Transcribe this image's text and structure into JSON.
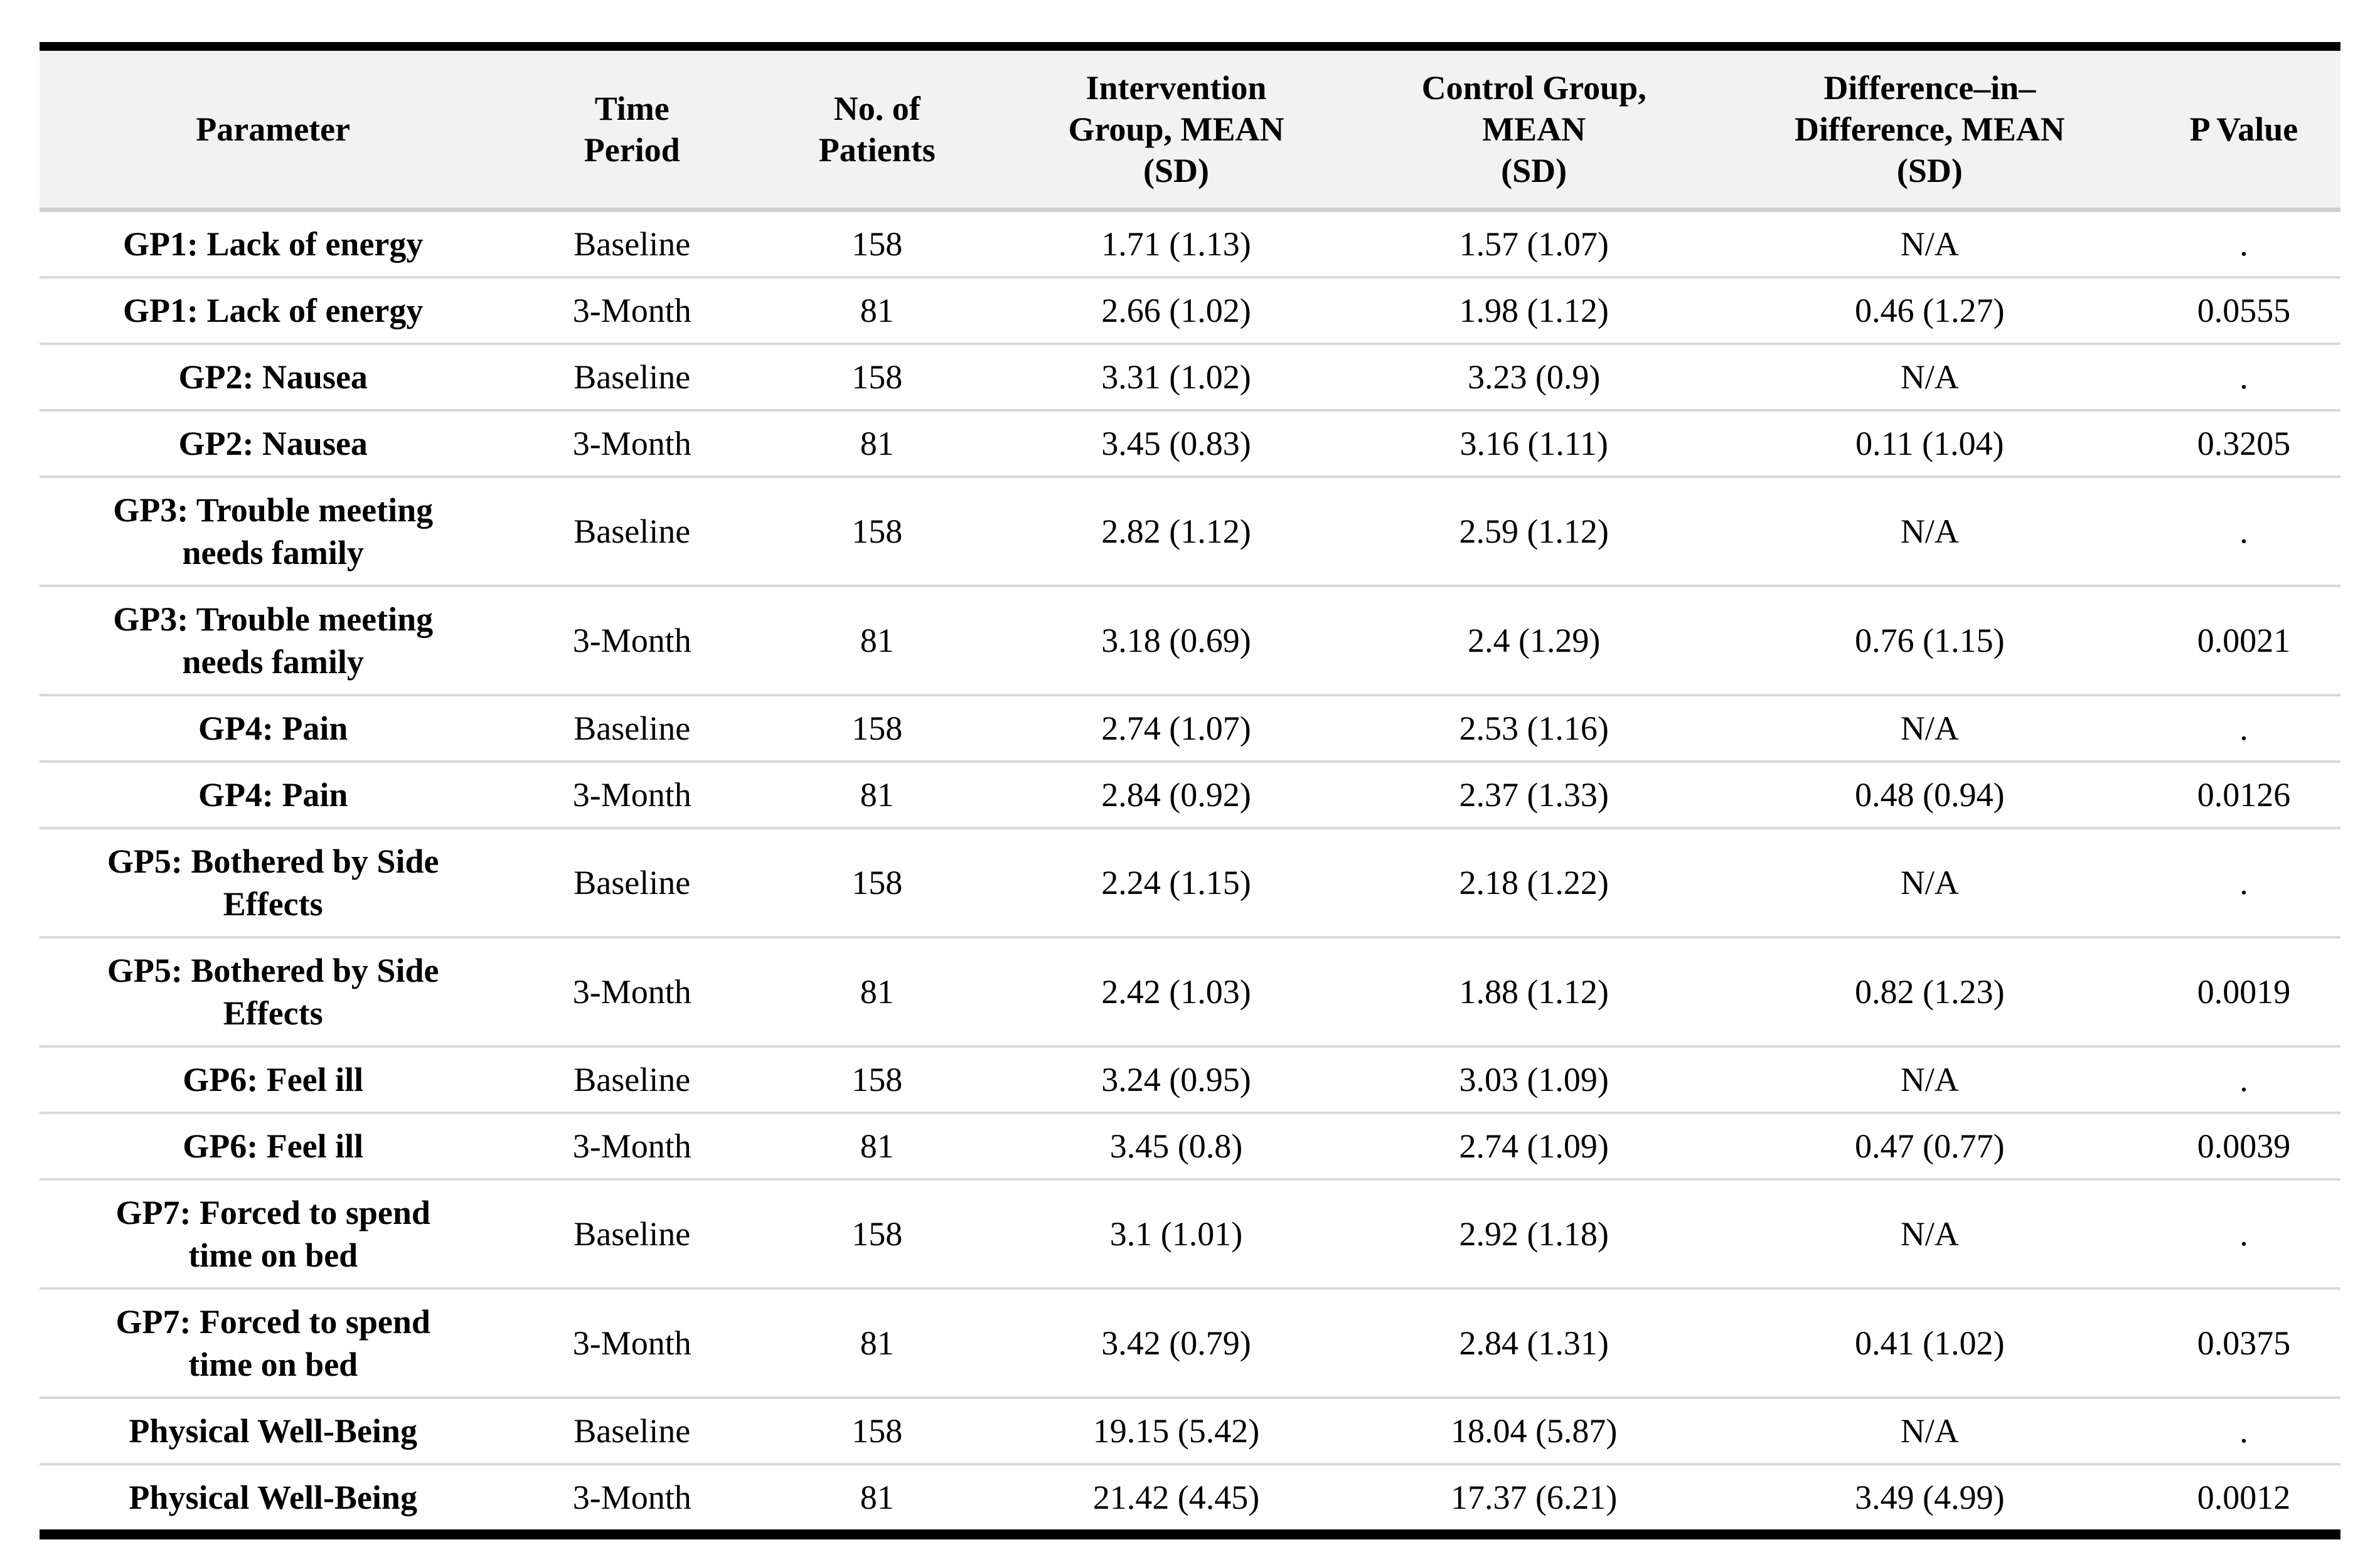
{
  "colors": {
    "page_bg": "#ffffff",
    "header_bg": "#f2f2f2",
    "row_divider": "#d9d9d9",
    "header_divider": "#cfcfcf",
    "outer_border": "#000000",
    "text": "#000000"
  },
  "table": {
    "column_ids": [
      "parameter",
      "time-period",
      "no-of-patients",
      "intervention-mean",
      "control-mean",
      "difference-mean",
      "p-value"
    ],
    "columns": [
      "Parameter",
      "Time\nPeriod",
      "No. of\nPatients",
      "Intervention\nGroup, MEAN\n(SD)",
      "Control Group,\nMEAN\n(SD)",
      "Difference–in–\nDifference, MEAN\n(SD)",
      "P Value"
    ],
    "rows": [
      [
        "GP1: Lack of energy",
        "Baseline",
        "158",
        "1.71 (1.13)",
        "1.57 (1.07)",
        "N/A",
        "."
      ],
      [
        "GP1: Lack of energy",
        "3-Month",
        "81",
        "2.66 (1.02)",
        "1.98 (1.12)",
        "0.46 (1.27)",
        "0.0555"
      ],
      [
        "GP2: Nausea",
        "Baseline",
        "158",
        "3.31 (1.02)",
        "3.23 (0.9)",
        "N/A",
        "."
      ],
      [
        "GP2: Nausea",
        "3-Month",
        "81",
        "3.45 (0.83)",
        "3.16 (1.11)",
        "0.11 (1.04)",
        "0.3205"
      ],
      [
        "GP3: Trouble meeting\nneeds family",
        "Baseline",
        "158",
        "2.82 (1.12)",
        "2.59 (1.12)",
        "N/A",
        "."
      ],
      [
        "GP3: Trouble meeting\nneeds family",
        "3-Month",
        "81",
        "3.18 (0.69)",
        "2.4 (1.29)",
        "0.76 (1.15)",
        "0.0021"
      ],
      [
        "GP4: Pain",
        "Baseline",
        "158",
        "2.74 (1.07)",
        "2.53 (1.16)",
        "N/A",
        "."
      ],
      [
        "GP4: Pain",
        "3-Month",
        "81",
        "2.84 (0.92)",
        "2.37 (1.33)",
        "0.48 (0.94)",
        "0.0126"
      ],
      [
        "GP5: Bothered by Side\nEffects",
        "Baseline",
        "158",
        "2.24 (1.15)",
        "2.18 (1.22)",
        "N/A",
        "."
      ],
      [
        "GP5: Bothered by Side\nEffects",
        "3-Month",
        "81",
        "2.42 (1.03)",
        "1.88 (1.12)",
        "0.82 (1.23)",
        "0.0019"
      ],
      [
        "GP6: Feel ill",
        "Baseline",
        "158",
        "3.24 (0.95)",
        "3.03 (1.09)",
        "N/A",
        "."
      ],
      [
        "GP6: Feel ill",
        "3-Month",
        "81",
        "3.45 (0.8)",
        "2.74 (1.09)",
        "0.47 (0.77)",
        "0.0039"
      ],
      [
        "GP7: Forced to spend\ntime on bed",
        "Baseline",
        "158",
        "3.1 (1.01)",
        "2.92 (1.18)",
        "N/A",
        "."
      ],
      [
        "GP7: Forced to spend\ntime on bed",
        "3-Month",
        "81",
        "3.42 (0.79)",
        "2.84 (1.31)",
        "0.41 (1.02)",
        "0.0375"
      ],
      [
        "Physical Well-Being",
        "Baseline",
        "158",
        "19.15 (5.42)",
        "18.04 (5.87)",
        "N/A",
        "."
      ],
      [
        "Physical Well-Being",
        "3-Month",
        "81",
        "21.42 (4.45)",
        "17.37 (6.21)",
        "3.49 (4.99)",
        "0.0012"
      ]
    ]
  }
}
